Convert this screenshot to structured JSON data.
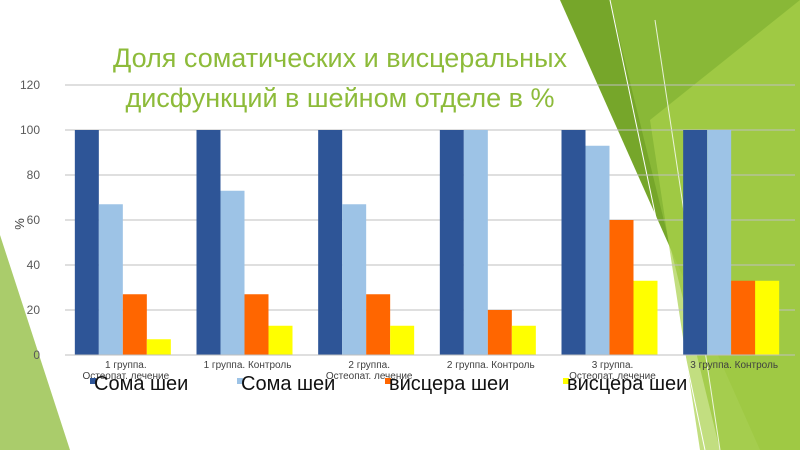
{
  "slide": {
    "title": "Доля соматических и висцеральных дисфункций в шейном отделе в %",
    "accent_color": "#8dbb3a"
  },
  "chart_data": {
    "type": "bar",
    "title": "",
    "xlabel": "",
    "ylabel": "%",
    "ylim": [
      0,
      120
    ],
    "yticks": [
      0,
      20,
      40,
      60,
      80,
      100,
      120
    ],
    "grid": true,
    "legend_position": "bottom",
    "categories": [
      [
        "1 группа.",
        "Остеопат. лечение"
      ],
      [
        "1 группа. Контроль"
      ],
      [
        "2 группа.",
        "Остеопат. лечение"
      ],
      [
        "2 группа. Контроль"
      ],
      [
        "3 группа.",
        "Остеопат. лечение"
      ],
      [
        "3 группа. Контроль"
      ]
    ],
    "series": [
      {
        "name": "Сома шеи",
        "color": "#2e5597",
        "values": [
          100,
          100,
          100,
          100,
          100,
          100
        ]
      },
      {
        "name": "Сома шеи",
        "color": "#9dc3e6",
        "values": [
          67,
          73,
          67,
          100,
          93,
          100
        ]
      },
      {
        "name": "висцера шеи",
        "color": "#ff6600",
        "values": [
          27,
          27,
          27,
          20,
          60,
          33
        ]
      },
      {
        "name": "висцера шеи",
        "color": "#ffff00",
        "values": [
          7,
          13,
          13,
          13,
          33,
          33
        ]
      }
    ]
  }
}
